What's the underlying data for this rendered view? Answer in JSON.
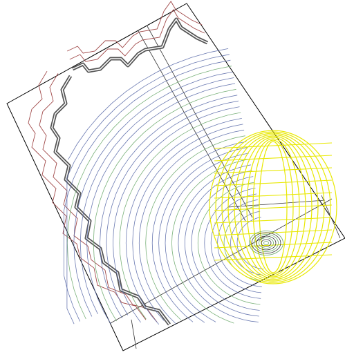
{
  "drawing": {
    "kind": "contour-map",
    "colors": {
      "background": "#ffffff",
      "frame": "#000000",
      "boundary_thick": "#555555",
      "contour_outer": "#a04848",
      "contour_blue": "#5a6aa8",
      "contour_green": "#6aa86a",
      "flow_yellow": "#e8e800",
      "grid": "#333333"
    },
    "contour_families": [
      "outer-red",
      "inner-blue-green",
      "point-source",
      "yellow-flow-net"
    ]
  }
}
